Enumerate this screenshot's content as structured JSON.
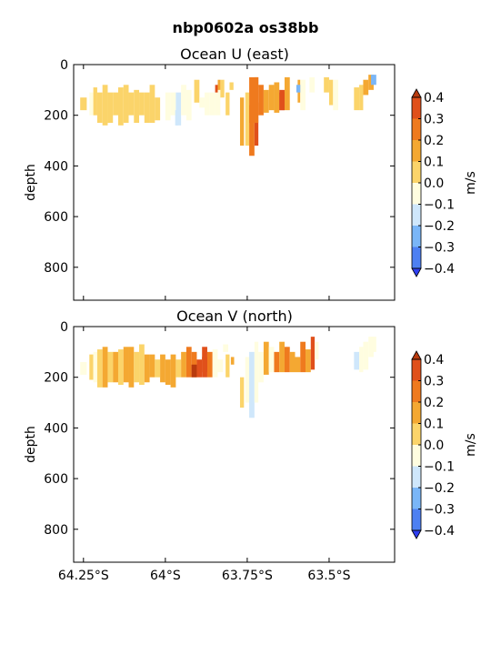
{
  "figure": {
    "title": "nbp0602a os38bb"
  },
  "chart_data": [
    {
      "type": "heatmap",
      "title": "Ocean U (east)",
      "ylabel": "depth",
      "ylim": [
        930,
        0
      ],
      "y_inverted": true,
      "yticks": [
        0,
        200,
        400,
        600,
        800
      ],
      "xlim": [
        -64.28,
        -63.3
      ],
      "xticks": [
        -64.25,
        -64.0,
        -63.75,
        -63.5
      ],
      "xtick_labels": [],
      "colorbar": {
        "label": "m/s",
        "levels": [
          -0.4,
          -0.3,
          -0.2,
          -0.1,
          0.0,
          0.1,
          0.2,
          0.3,
          0.4
        ],
        "tick_labels": [
          "−0.4",
          "−0.3",
          "−0.2",
          "−0.1",
          "0.0",
          "0.1",
          "0.2",
          "0.3",
          "0.4"
        ],
        "colors": [
          "#2e3ef0",
          "#4d80f2",
          "#7ab6f7",
          "#cfe7fb",
          "#fffde0",
          "#fbd46a",
          "#f4a832",
          "#ef7a1e",
          "#e0501b",
          "#b83a0e"
        ]
      },
      "cells": [
        [
          -64.26,
          -64.24,
          130,
          180,
          0.04
        ],
        [
          -64.232,
          -64.22,
          110,
          200,
          -0.03
        ],
        [
          -64.22,
          -64.208,
          90,
          200,
          0.03
        ],
        [
          -64.208,
          -64.192,
          110,
          230,
          0.06
        ],
        [
          -64.192,
          -64.176,
          80,
          240,
          0.08
        ],
        [
          -64.176,
          -64.16,
          110,
          230,
          0.03
        ],
        [
          -64.16,
          -64.144,
          110,
          200,
          0.02
        ],
        [
          -64.144,
          -64.128,
          90,
          240,
          0.08
        ],
        [
          -64.128,
          -64.112,
          80,
          230,
          0.05
        ],
        [
          -64.112,
          -64.096,
          110,
          200,
          0.01
        ],
        [
          -64.096,
          -64.08,
          100,
          230,
          0.07
        ],
        [
          -64.08,
          -64.064,
          110,
          200,
          0.04
        ],
        [
          -64.064,
          -64.048,
          110,
          230,
          0.02
        ],
        [
          -64.048,
          -64.032,
          80,
          230,
          0.03
        ],
        [
          -64.032,
          -64.016,
          130,
          220,
          0.05
        ],
        [
          -64.0,
          -63.984,
          110,
          220,
          -0.02
        ],
        [
          -63.984,
          -63.968,
          110,
          200,
          -0.05
        ],
        [
          -63.968,
          -63.952,
          110,
          240,
          -0.15
        ],
        [
          -63.952,
          -63.936,
          80,
          200,
          -0.08
        ],
        [
          -63.936,
          -63.92,
          100,
          220,
          -0.05
        ],
        [
          -63.912,
          -63.896,
          60,
          150,
          0.02
        ],
        [
          -63.896,
          -63.88,
          130,
          170,
          -0.04
        ],
        [
          -63.88,
          -63.864,
          110,
          200,
          -0.03
        ],
        [
          -63.864,
          -63.848,
          110,
          200,
          -0.02
        ],
        [
          -63.848,
          -63.832,
          90,
          200,
          -0.06
        ],
        [
          -63.832,
          -63.82,
          60,
          130,
          0.02
        ],
        [
          -63.816,
          -63.804,
          110,
          200,
          0.03
        ],
        [
          -63.804,
          -63.792,
          70,
          100,
          0.06
        ],
        [
          -63.772,
          -63.76,
          130,
          320,
          0.17
        ],
        [
          -63.756,
          -63.744,
          110,
          320,
          0.05
        ],
        [
          -63.744,
          -63.728,
          160,
          360,
          0.2
        ],
        [
          -63.728,
          -63.716,
          150,
          320,
          0.3
        ],
        [
          -63.744,
          -63.716,
          50,
          230,
          0.22
        ],
        [
          -63.716,
          -63.7,
          80,
          200,
          0.2
        ],
        [
          -63.7,
          -63.684,
          100,
          190,
          0.15
        ],
        [
          -63.684,
          -63.668,
          80,
          180,
          0.12
        ],
        [
          -63.668,
          -63.652,
          70,
          190,
          0.17
        ],
        [
          -63.652,
          -63.636,
          100,
          180,
          0.3
        ],
        [
          -63.636,
          -63.62,
          50,
          180,
          0.18
        ],
        [
          -63.596,
          -63.588,
          60,
          150,
          0.12
        ],
        [
          -63.588,
          -63.572,
          60,
          180,
          -0.05
        ],
        [
          -63.56,
          -63.544,
          50,
          110,
          -0.01
        ],
        [
          -63.516,
          -63.5,
          50,
          110,
          0.04
        ],
        [
          -63.5,
          -63.488,
          60,
          160,
          0.04
        ],
        [
          -63.488,
          -63.472,
          60,
          180,
          -0.01
        ],
        [
          -63.424,
          -63.408,
          90,
          180,
          0.05
        ],
        [
          -63.408,
          -63.396,
          80,
          180,
          0.06
        ],
        [
          -63.396,
          -63.38,
          60,
          120,
          0.12
        ],
        [
          -63.38,
          -63.364,
          40,
          100,
          0.15
        ],
        [
          -63.372,
          -63.356,
          40,
          80,
          -0.22
        ],
        [
          -63.652,
          -63.636,
          110,
          180,
          0.32
        ],
        [
          -63.728,
          -63.716,
          50,
          90,
          0.25
        ],
        [
          -63.6,
          -63.588,
          80,
          110,
          -0.22
        ],
        [
          -63.848,
          -63.84,
          80,
          110,
          0.32
        ],
        [
          -63.84,
          -63.832,
          60,
          100,
          0.15
        ],
        [
          -63.97,
          -63.96,
          180,
          240,
          -0.12
        ]
      ]
    },
    {
      "type": "heatmap",
      "title": "Ocean V (north)",
      "ylabel": "depth",
      "ylim": [
        930,
        0
      ],
      "y_inverted": true,
      "yticks": [
        0,
        200,
        400,
        600,
        800
      ],
      "xlim": [
        -64.28,
        -63.3
      ],
      "xticks": [
        -64.25,
        -64.0,
        -63.75,
        -63.5
      ],
      "xtick_labels": [
        "64.25°S",
        "64°S",
        "63.75°S",
        "63.5°S"
      ],
      "colorbar": {
        "label": "m/s",
        "levels": [
          -0.4,
          -0.3,
          -0.2,
          -0.1,
          0.0,
          0.1,
          0.2,
          0.3,
          0.4
        ],
        "tick_labels": [
          "−0.4",
          "−0.3",
          "−0.2",
          "−0.1",
          "0.0",
          "0.1",
          "0.2",
          "0.3",
          "0.4"
        ],
        "colors": [
          "#2e3ef0",
          "#4d80f2",
          "#7ab6f7",
          "#cfe7fb",
          "#fffde0",
          "#fbd46a",
          "#f4a832",
          "#ef7a1e",
          "#e0501b",
          "#b83a0e"
        ]
      },
      "cells": [
        [
          -64.26,
          -64.24,
          140,
          190,
          -0.05
        ],
        [
          -64.232,
          -64.22,
          110,
          210,
          0.02
        ],
        [
          -64.22,
          -64.208,
          100,
          220,
          -0.03
        ],
        [
          -64.208,
          -64.192,
          90,
          240,
          0.05
        ],
        [
          -64.192,
          -64.176,
          80,
          240,
          0.12
        ],
        [
          -64.176,
          -64.16,
          100,
          220,
          0.06
        ],
        [
          -64.16,
          -64.144,
          100,
          220,
          0.14
        ],
        [
          -64.144,
          -64.128,
          90,
          230,
          0.05
        ],
        [
          -64.128,
          -64.112,
          80,
          220,
          0.1
        ],
        [
          -64.112,
          -64.096,
          80,
          240,
          0.13
        ],
        [
          -64.096,
          -64.08,
          100,
          220,
          0.08
        ],
        [
          -64.08,
          -64.064,
          70,
          230,
          0.05
        ],
        [
          -64.064,
          -64.048,
          110,
          220,
          0.16
        ],
        [
          -64.048,
          -64.032,
          110,
          200,
          0.14
        ],
        [
          -64.032,
          -64.016,
          130,
          200,
          0.04
        ],
        [
          -64.016,
          -64.0,
          110,
          220,
          0.12
        ],
        [
          -64.0,
          -63.984,
          130,
          230,
          0.18
        ],
        [
          -63.984,
          -63.968,
          110,
          240,
          0.15
        ],
        [
          -63.968,
          -63.952,
          130,
          200,
          0.05
        ],
        [
          -63.952,
          -63.936,
          100,
          200,
          0.13
        ],
        [
          -63.936,
          -63.92,
          80,
          200,
          0.2
        ],
        [
          -63.92,
          -63.904,
          100,
          200,
          0.22
        ],
        [
          -63.904,
          -63.888,
          130,
          200,
          0.35
        ],
        [
          -63.888,
          -63.872,
          80,
          200,
          0.3
        ],
        [
          -63.872,
          -63.856,
          100,
          200,
          0.25
        ],
        [
          -63.856,
          -63.84,
          90,
          200,
          -0.04
        ],
        [
          -63.84,
          -63.824,
          130,
          180,
          -0.08
        ],
        [
          -63.824,
          -63.808,
          70,
          100,
          -0.1
        ],
        [
          -63.816,
          -63.804,
          110,
          200,
          0.05
        ],
        [
          -63.772,
          -63.76,
          200,
          320,
          0.05
        ],
        [
          -63.756,
          -63.744,
          120,
          300,
          -0.06
        ],
        [
          -63.744,
          -63.728,
          100,
          360,
          -0.12
        ],
        [
          -63.728,
          -63.716,
          60,
          300,
          -0.08
        ],
        [
          -63.716,
          -63.7,
          100,
          220,
          -0.06
        ],
        [
          -63.7,
          -63.684,
          60,
          190,
          0.18
        ],
        [
          -63.684,
          -63.668,
          80,
          180,
          -0.04
        ],
        [
          -63.668,
          -63.652,
          100,
          180,
          0.2
        ],
        [
          -63.652,
          -63.636,
          60,
          180,
          0.15
        ],
        [
          -63.636,
          -63.62,
          80,
          180,
          0.22
        ],
        [
          -63.62,
          -63.604,
          100,
          180,
          0.18
        ],
        [
          -63.604,
          -63.588,
          120,
          180,
          0.18
        ],
        [
          -63.588,
          -63.572,
          60,
          180,
          0.25
        ],
        [
          -63.572,
          -63.556,
          90,
          180,
          0.18
        ],
        [
          -63.556,
          -63.544,
          40,
          170,
          0.3
        ],
        [
          -63.544,
          -63.532,
          60,
          130,
          -0.05
        ],
        [
          -63.424,
          -63.408,
          100,
          170,
          -0.15
        ],
        [
          -63.408,
          -63.396,
          80,
          180,
          -0.1
        ],
        [
          -63.396,
          -63.38,
          60,
          170,
          -0.06
        ],
        [
          -63.38,
          -63.364,
          40,
          120,
          -0.08
        ],
        [
          -63.372,
          -63.356,
          40,
          100,
          -0.05
        ],
        [
          -63.92,
          -63.904,
          150,
          200,
          0.4
        ],
        [
          -63.888,
          -63.872,
          120,
          180,
          0.34
        ],
        [
          -63.8,
          -63.79,
          120,
          150,
          0.15
        ]
      ]
    }
  ]
}
